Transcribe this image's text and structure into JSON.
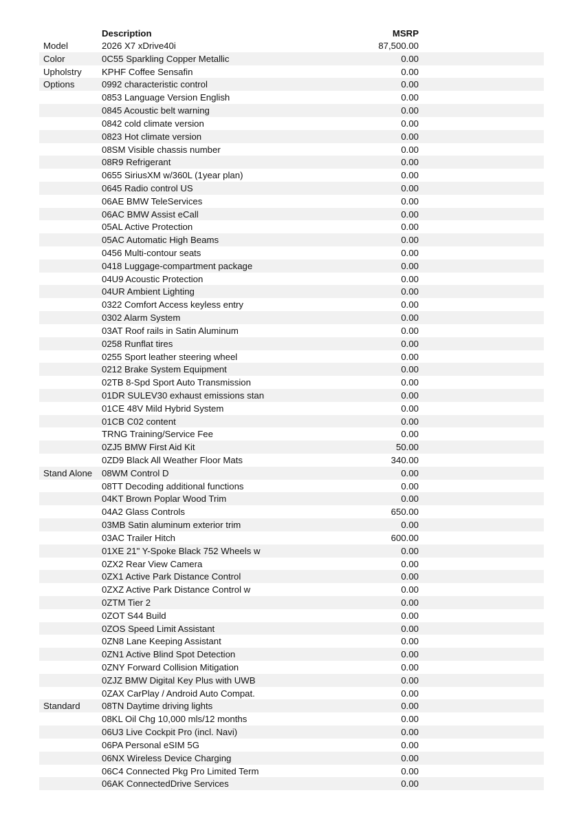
{
  "header": {
    "description": "Description",
    "msrp": "MSRP"
  },
  "rows": [
    {
      "category": "Model",
      "description": "2026 X7 xDrive40i",
      "msrp": "87,500.00"
    },
    {
      "category": "Color",
      "description": "0C55 Sparkling Copper Metallic",
      "msrp": "0.00"
    },
    {
      "category": "Upholstry",
      "description": "KPHF Coffee Sensafin",
      "msrp": "0.00"
    },
    {
      "category": "Options",
      "description": "0992 characteristic control",
      "msrp": "0.00"
    },
    {
      "category": "",
      "description": "0853 Language Version English",
      "msrp": "0.00"
    },
    {
      "category": "",
      "description": "0845 Acoustic belt warning",
      "msrp": "0.00"
    },
    {
      "category": "",
      "description": "0842 cold climate version",
      "msrp": "0.00"
    },
    {
      "category": "",
      "description": "0823 Hot climate version",
      "msrp": "0.00"
    },
    {
      "category": "",
      "description": "08SM Visible chassis number",
      "msrp": "0.00"
    },
    {
      "category": "",
      "description": "08R9 Refrigerant",
      "msrp": "0.00"
    },
    {
      "category": "",
      "description": "0655 SiriusXM w/360L (1year plan)",
      "msrp": "0.00"
    },
    {
      "category": "",
      "description": "0645 Radio control US",
      "msrp": "0.00"
    },
    {
      "category": "",
      "description": "06AE BMW TeleServices",
      "msrp": "0.00"
    },
    {
      "category": "",
      "description": "06AC BMW Assist eCall",
      "msrp": "0.00"
    },
    {
      "category": "",
      "description": "05AL Active Protection",
      "msrp": "0.00"
    },
    {
      "category": "",
      "description": "05AC Automatic High Beams",
      "msrp": "0.00"
    },
    {
      "category": "",
      "description": "0456 Multi-contour seats",
      "msrp": "0.00"
    },
    {
      "category": "",
      "description": "0418 Luggage-compartment package",
      "msrp": "0.00"
    },
    {
      "category": "",
      "description": "04U9 Acoustic Protection",
      "msrp": "0.00"
    },
    {
      "category": "",
      "description": "04UR Ambient Lighting",
      "msrp": "0.00"
    },
    {
      "category": "",
      "description": "0322 Comfort Access keyless entry",
      "msrp": "0.00"
    },
    {
      "category": "",
      "description": "0302 Alarm System",
      "msrp": "0.00"
    },
    {
      "category": "",
      "description": "03AT Roof rails in Satin Aluminum",
      "msrp": "0.00"
    },
    {
      "category": "",
      "description": "0258 Runflat tires",
      "msrp": "0.00"
    },
    {
      "category": "",
      "description": "0255 Sport leather steering wheel",
      "msrp": "0.00"
    },
    {
      "category": "",
      "description": "0212 Brake System Equipment",
      "msrp": "0.00"
    },
    {
      "category": "",
      "description": "02TB 8-Spd Sport Auto Transmission",
      "msrp": "0.00"
    },
    {
      "category": "",
      "description": "01DR SULEV30 exhaust emissions stan",
      "msrp": "0.00"
    },
    {
      "category": "",
      "description": "01CE 48V Mild Hybrid System",
      "msrp": "0.00"
    },
    {
      "category": "",
      "description": "01CB C02 content",
      "msrp": "0.00"
    },
    {
      "category": "",
      "description": "TRNG Training/Service Fee",
      "msrp": "0.00"
    },
    {
      "category": "",
      "description": "0ZJ5 BMW First Aid Kit",
      "msrp": "50.00"
    },
    {
      "category": "",
      "description": "0ZD9 Black All Weather Floor Mats",
      "msrp": "340.00"
    },
    {
      "category": "Stand Alone",
      "description": "08WM Control D",
      "msrp": "0.00"
    },
    {
      "category": "",
      "description": "08TT Decoding additional functions",
      "msrp": "0.00"
    },
    {
      "category": "",
      "description": "04KT Brown Poplar Wood Trim",
      "msrp": "0.00"
    },
    {
      "category": "",
      "description": "04A2 Glass Controls",
      "msrp": "650.00"
    },
    {
      "category": "",
      "description": "03MB Satin aluminum exterior trim",
      "msrp": "0.00"
    },
    {
      "category": "",
      "description": "03AC Trailer Hitch",
      "msrp": "600.00"
    },
    {
      "category": "",
      "description": "01XE 21\" Y-Spoke Black 752 Wheels w",
      "msrp": "0.00"
    },
    {
      "category": "",
      "description": "0ZX2 Rear View Camera",
      "msrp": "0.00"
    },
    {
      "category": "",
      "description": "0ZX1 Active Park Distance Control",
      "msrp": "0.00"
    },
    {
      "category": "",
      "description": "0ZXZ Active Park Distance Control w",
      "msrp": "0.00"
    },
    {
      "category": "",
      "description": "0ZTM Tier 2",
      "msrp": "0.00"
    },
    {
      "category": "",
      "description": "0ZOT S44 Build",
      "msrp": "0.00"
    },
    {
      "category": "",
      "description": "0ZOS Speed Limit Assistant",
      "msrp": "0.00"
    },
    {
      "category": "",
      "description": "0ZN8 Lane Keeping Assistant",
      "msrp": "0.00"
    },
    {
      "category": "",
      "description": "0ZN1 Active Blind Spot Detection",
      "msrp": "0.00"
    },
    {
      "category": "",
      "description": "0ZNY Forward Collision Mitigation",
      "msrp": "0.00"
    },
    {
      "category": "",
      "description": "0ZJZ BMW Digital Key Plus with UWB",
      "msrp": "0.00"
    },
    {
      "category": "",
      "description": "0ZAX CarPlay / Android Auto Compat.",
      "msrp": "0.00"
    },
    {
      "category": "Standard",
      "description": "08TN Daytime driving lights",
      "msrp": "0.00"
    },
    {
      "category": "",
      "description": "08KL Oil Chg 10,000 mls/12 months",
      "msrp": "0.00"
    },
    {
      "category": "",
      "description": "06U3 Live Cockpit Pro (incl. Navi)",
      "msrp": "0.00"
    },
    {
      "category": "",
      "description": "06PA Personal eSIM 5G",
      "msrp": "0.00"
    },
    {
      "category": "",
      "description": "06NX Wireless Device Charging",
      "msrp": "0.00"
    },
    {
      "category": "",
      "description": "06C4 Connected Pkg Pro Limited Term",
      "msrp": "0.00"
    },
    {
      "category": "",
      "description": "06AK ConnectedDrive Services",
      "msrp": "0.00"
    }
  ],
  "colors": {
    "stripe": "#f1f1f1",
    "text": "#111111"
  }
}
